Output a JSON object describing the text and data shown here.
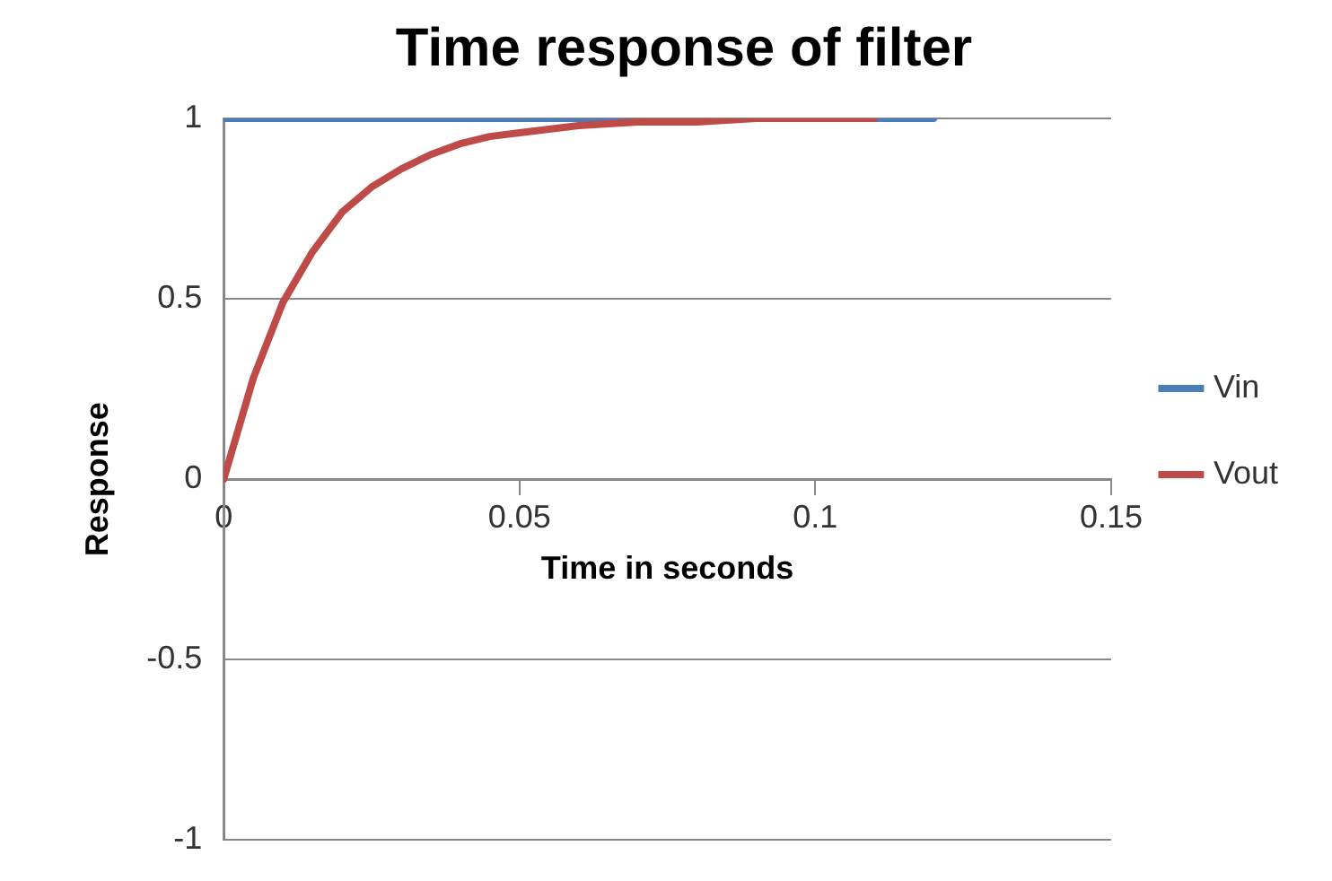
{
  "chart_data": {
    "type": "line",
    "title": "Time response of filter",
    "xlabel": "Time in seconds",
    "ylabel": "Response",
    "xlim": [
      0,
      0.15
    ],
    "xticks": [
      0,
      0.05,
      0.1,
      0.15
    ],
    "ylim": [
      -1,
      1
    ],
    "yticks": [
      -1,
      -0.5,
      0,
      0.5,
      1
    ],
    "grid": "y",
    "legend": "right",
    "marker": "none",
    "series": [
      {
        "name": "Vin",
        "color": "#4a7ebb",
        "x": [
          0,
          0.12
        ],
        "values": [
          1,
          1
        ]
      },
      {
        "name": "Vout",
        "color": "#be4b48",
        "x": [
          0,
          0.005,
          0.01,
          0.015,
          0.02,
          0.025,
          0.03,
          0.035,
          0.04,
          0.045,
          0.05,
          0.06,
          0.07,
          0.08,
          0.09,
          0.1,
          0.11
        ],
        "values": [
          0,
          0.28,
          0.49,
          0.63,
          0.74,
          0.81,
          0.86,
          0.9,
          0.93,
          0.95,
          0.96,
          0.98,
          0.99,
          0.99,
          1,
          1,
          1
        ]
      }
    ]
  }
}
